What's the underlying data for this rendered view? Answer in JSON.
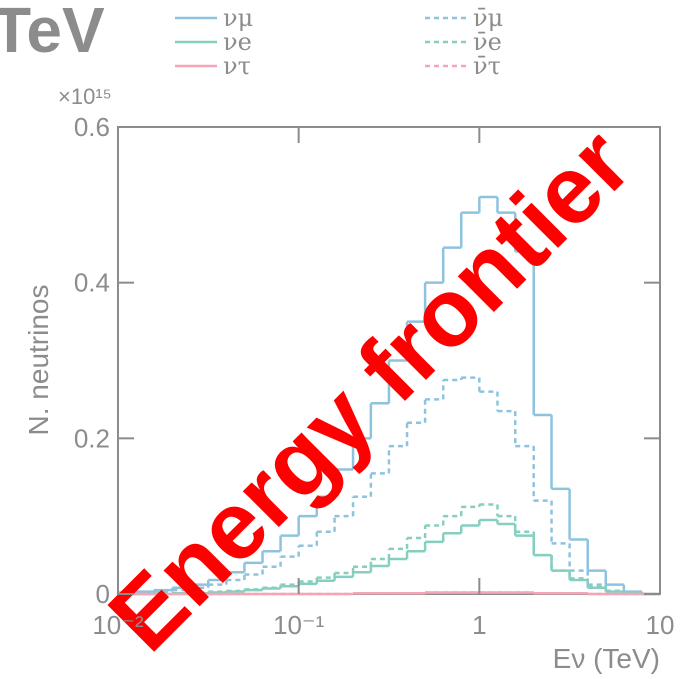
{
  "chart_data": {
    "type": "histogram",
    "title": "TeV",
    "y_multiplier": "×10¹⁵",
    "xlabel": "Eν (TeV)",
    "ylabel": "N. neutrinos",
    "annotation": "Energy frontier",
    "xscale": "log",
    "xlim": [
      0.01,
      10
    ],
    "xticks": [
      {
        "value": 0.01,
        "label": "10⁻²"
      },
      {
        "value": 0.1,
        "label": "10⁻¹"
      },
      1,
      10
    ],
    "ylim": [
      0,
      0.6
    ],
    "yticks": [
      0,
      0.2,
      0.4,
      0.6
    ],
    "bins": [
      0.01,
      0.0126,
      0.0158,
      0.02,
      0.0251,
      0.0316,
      0.0398,
      0.0501,
      0.0631,
      0.0794,
      0.1,
      0.126,
      0.158,
      0.2,
      0.251,
      0.316,
      0.398,
      0.501,
      0.631,
      0.794,
      1,
      1.26,
      1.58,
      2,
      2.51,
      3.16,
      3.98,
      5.01,
      6.31,
      7.94,
      10
    ],
    "series": [
      {
        "name": "νμ",
        "color": "#8ec3de",
        "dashed": false,
        "values": [
          0.002,
          0.003,
          0.005,
          0.008,
          0.012,
          0.018,
          0.028,
          0.04,
          0.055,
          0.075,
          0.1,
          0.125,
          0.16,
          0.2,
          0.245,
          0.3,
          0.35,
          0.4,
          0.445,
          0.49,
          0.51,
          0.49,
          0.44,
          0.23,
          0.135,
          0.07,
          0.03,
          0.012,
          0.003,
          0
        ]
      },
      {
        "name": "νe",
        "color": "#86cfc0",
        "dashed": false,
        "values": [
          0,
          0,
          0,
          0.001,
          0.001,
          0.002,
          0.003,
          0.005,
          0.007,
          0.01,
          0.013,
          0.017,
          0.022,
          0.028,
          0.036,
          0.045,
          0.055,
          0.067,
          0.078,
          0.088,
          0.095,
          0.09,
          0.075,
          0.05,
          0.03,
          0.018,
          0.008,
          0.003,
          0.001,
          0
        ]
      },
      {
        "name": "ντ",
        "color": "#f4a6b8",
        "dashed": false,
        "values": [
          0,
          0,
          0,
          0,
          0,
          0,
          0,
          0,
          0,
          0,
          0,
          0,
          0,
          0.001,
          0.001,
          0.001,
          0.001,
          0.002,
          0.002,
          0.002,
          0.002,
          0.002,
          0.002,
          0.001,
          0.001,
          0.001,
          0,
          0,
          0,
          0
        ]
      },
      {
        "name": "ν̄μ",
        "color": "#8ec3de",
        "dashed": true,
        "values": [
          0.001,
          0.002,
          0.003,
          0.005,
          0.008,
          0.012,
          0.018,
          0.025,
          0.035,
          0.048,
          0.062,
          0.08,
          0.1,
          0.125,
          0.155,
          0.19,
          0.22,
          0.25,
          0.275,
          0.278,
          0.26,
          0.235,
          0.19,
          0.12,
          0.065,
          0.03,
          0.012,
          0.004,
          0.001,
          0
        ]
      },
      {
        "name": "ν̄e",
        "color": "#86cfc0",
        "dashed": true,
        "values": [
          0,
          0,
          0.001,
          0.001,
          0.002,
          0.003,
          0.004,
          0.006,
          0.008,
          0.012,
          0.016,
          0.021,
          0.027,
          0.035,
          0.045,
          0.058,
          0.072,
          0.088,
          0.1,
          0.112,
          0.115,
          0.1,
          0.08,
          0.05,
          0.03,
          0.02,
          0.01,
          0.004,
          0.001,
          0
        ]
      },
      {
        "name": "ν̄τ",
        "color": "#f4a6b8",
        "dashed": true,
        "values": [
          0,
          0,
          0,
          0,
          0,
          0,
          0,
          0,
          0,
          0,
          0,
          0,
          0,
          0.001,
          0.001,
          0.001,
          0.001,
          0.002,
          0.002,
          0.002,
          0.002,
          0.002,
          0.002,
          0.001,
          0.001,
          0.001,
          0,
          0,
          0,
          0
        ]
      }
    ]
  }
}
